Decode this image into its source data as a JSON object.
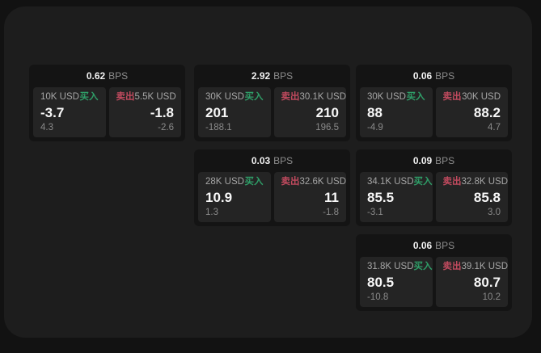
{
  "labels": {
    "bps_suffix": "BPS",
    "buy": "买入",
    "sell": "卖出"
  },
  "colors": {
    "buy_green": "#2f9e68",
    "sell_red": "#c04a5e",
    "surface": "#1d1d1d",
    "card": "#141414",
    "panel": "#242424"
  },
  "cards": [
    {
      "row": 1,
      "col": 1,
      "bps": "0.62",
      "buy": {
        "notional": "10K USD",
        "price": "-3.7",
        "delta": "4.3"
      },
      "sell": {
        "notional": "5.5K USD",
        "price": "-1.8",
        "delta": "-2.6"
      }
    },
    {
      "row": 1,
      "col": 2,
      "bps": "2.92",
      "buy": {
        "notional": "30K USD",
        "price": "201",
        "delta": "-188.1"
      },
      "sell": {
        "notional": "30.1K USD",
        "price": "210",
        "delta": "196.5"
      }
    },
    {
      "row": 1,
      "col": 3,
      "bps": "0.06",
      "buy": {
        "notional": "30K USD",
        "price": "88",
        "delta": "-4.9"
      },
      "sell": {
        "notional": "30K USD",
        "price": "88.2",
        "delta": "4.7"
      }
    },
    {
      "row": 2,
      "col": 2,
      "bps": "0.03",
      "buy": {
        "notional": "28K USD",
        "price": "10.9",
        "delta": "1.3"
      },
      "sell": {
        "notional": "32.6K USD",
        "price": "11",
        "delta": "-1.8"
      }
    },
    {
      "row": 2,
      "col": 3,
      "bps": "0.09",
      "buy": {
        "notional": "34.1K USD",
        "price": "85.5",
        "delta": "-3.1"
      },
      "sell": {
        "notional": "32.8K USD",
        "price": "85.8",
        "delta": "3.0"
      }
    },
    {
      "row": 3,
      "col": 3,
      "bps": "0.06",
      "buy": {
        "notional": "31.8K USD",
        "price": "80.5",
        "delta": "-10.8"
      },
      "sell": {
        "notional": "39.1K USD",
        "price": "80.7",
        "delta": "10.2"
      }
    }
  ]
}
